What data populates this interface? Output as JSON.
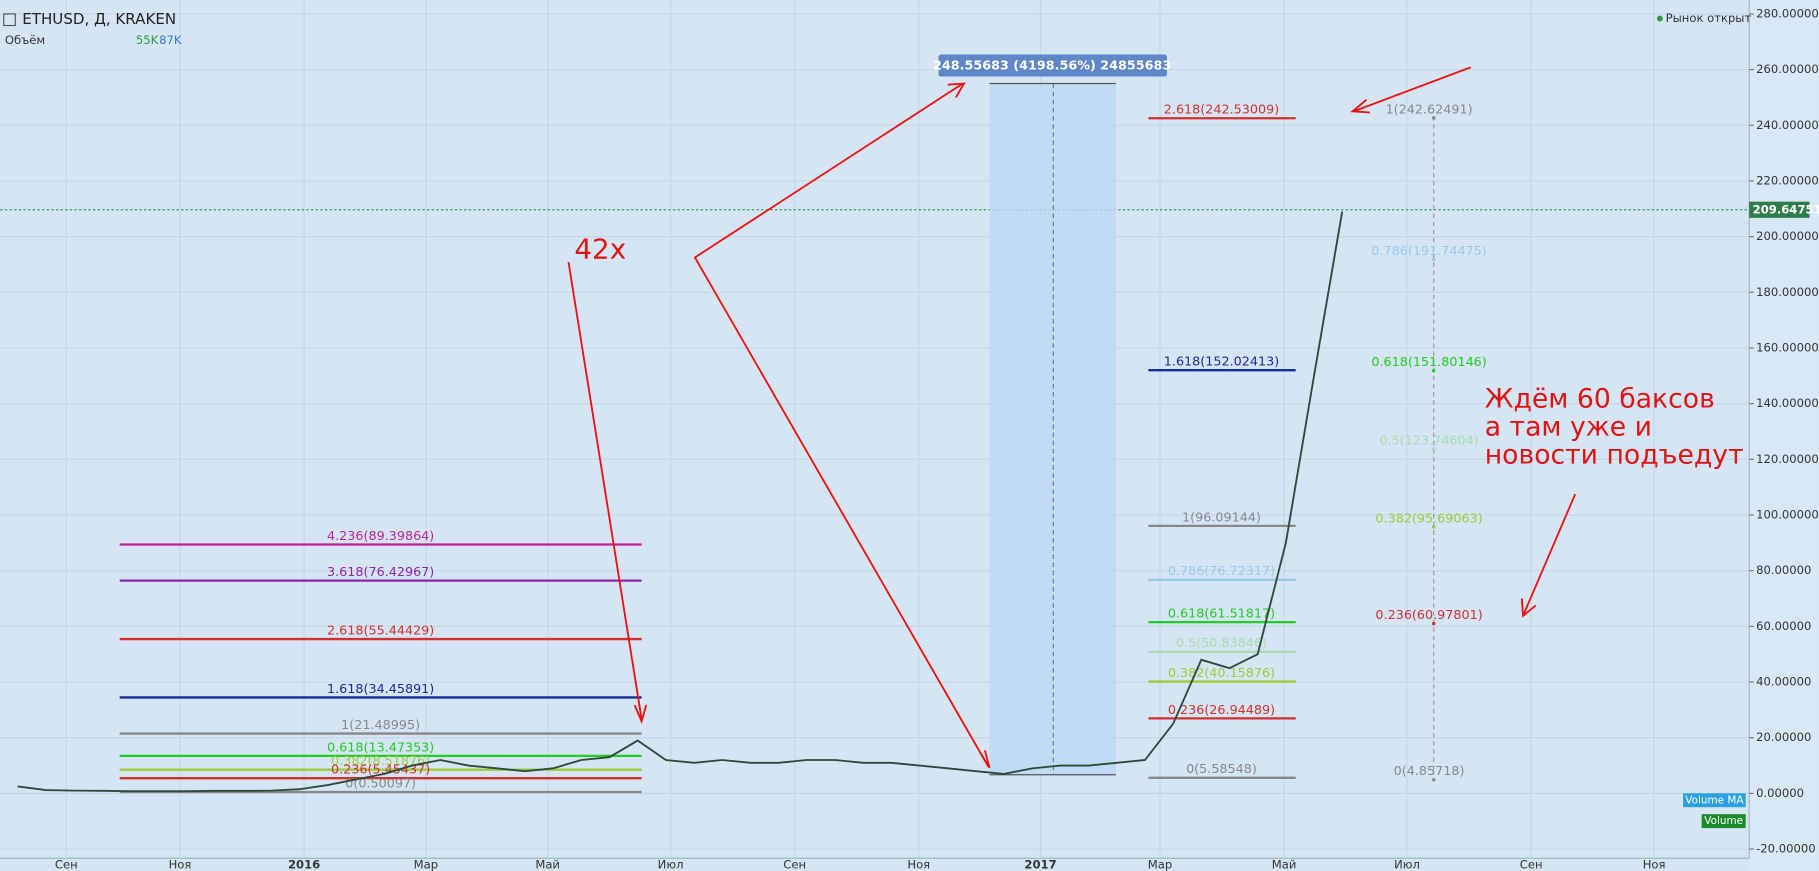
{
  "header": {
    "symbol": "ETHUSD, Д, KRAKEN",
    "indicator": "Объём",
    "volume_a": "55K",
    "volume_b": "87K",
    "market_status": "Рынок открыт"
  },
  "price_axis": {
    "ylim": [
      -23.3,
      285
    ],
    "yticks": [
      {
        "value": 280,
        "label": "280.00000"
      },
      {
        "value": 260,
        "label": "260.00000"
      },
      {
        "value": 240,
        "label": "240.00000"
      },
      {
        "value": 220,
        "label": "220.00000"
      },
      {
        "value": 200,
        "label": "200.00000"
      },
      {
        "value": 180,
        "label": "180.00000"
      },
      {
        "value": 160,
        "label": "160.00000"
      },
      {
        "value": 140,
        "label": "140.00000"
      },
      {
        "value": 120,
        "label": "120.00000"
      },
      {
        "value": 100,
        "label": "100.00000"
      },
      {
        "value": 80,
        "label": "80.00000"
      },
      {
        "value": 60,
        "label": "60.00000"
      },
      {
        "value": 40,
        "label": "40.00000"
      },
      {
        "value": 20,
        "label": "20.00000"
      },
      {
        "value": 0,
        "label": "0.00000"
      },
      {
        "value": -20,
        "label": "-20.00000"
      }
    ],
    "last_price": {
      "value": 209.64751,
      "label": "209.64751"
    }
  },
  "time_axis": {
    "labels": [
      "Сен",
      "Ноя",
      "2016",
      "Мар",
      "Май",
      "Июл",
      "Сен",
      "Ноя",
      "2017",
      "Мар",
      "Май",
      "Июл",
      "Сен",
      "Ноя"
    ]
  },
  "price_trace": {
    "values": [
      2.5,
      1.2,
      1.0,
      0.9,
      0.8,
      0.8,
      0.8,
      0.9,
      0.9,
      1.0,
      1.5,
      3,
      5,
      7,
      10,
      12,
      10,
      9,
      8,
      9,
      12,
      13,
      19,
      12,
      11,
      12,
      11,
      11,
      12,
      12,
      11,
      11,
      10,
      9,
      8,
      7,
      9,
      10,
      10,
      11,
      12,
      25,
      48,
      45,
      50,
      90,
      150,
      209
    ]
  },
  "fib_sets": [
    {
      "levels": [
        {
          "value": 89.39864,
          "label": "4.236(89.39864)",
          "color": "#c0229a"
        },
        {
          "value": 76.42967,
          "label": "3.618(76.42967)",
          "color": "#8e24aa"
        },
        {
          "value": 55.44429,
          "label": "2.618(55.44429)",
          "color": "#d32f2f"
        },
        {
          "value": 34.45891,
          "label": "1.618(34.45891)",
          "color": "#1a2a9a"
        },
        {
          "value": 21.48995,
          "label": "1(21.48995)",
          "color": "#888888"
        },
        {
          "value": 13.47353,
          "label": "0.618(13.47353)",
          "color": "#22cc22"
        },
        {
          "value": 8.51876,
          "label": "0.382(8.51876)",
          "color": "#9ccc3a"
        },
        {
          "value": 5.45437,
          "label": "0.236(5.45437)",
          "color": "#d32f2f"
        },
        {
          "value": 0.50097,
          "label": "0(0.50097)",
          "color": "#888888"
        }
      ]
    },
    {
      "levels": [
        {
          "value": 242.53009,
          "label": "2.618(242.53009)",
          "color": "#d32f2f"
        },
        {
          "value": 152.02413,
          "label": "1.618(152.02413)",
          "color": "#1a2a9a"
        },
        {
          "value": 96.09144,
          "label": "1(96.09144)",
          "color": "#888888"
        },
        {
          "value": 76.72317,
          "label": "0.786(76.72317)",
          "color": "#9cc8e8"
        },
        {
          "value": 61.51817,
          "label": "0.618(61.51817)",
          "color": "#22cc22"
        },
        {
          "value": 50.83846,
          "label": "0.5(50.83846)",
          "color": "#a8dcb0"
        },
        {
          "value": 40.15876,
          "label": "0.382(40.15876)",
          "color": "#9ccc3a"
        },
        {
          "value": 26.94489,
          "label": "0.236(26.94489)",
          "color": "#d32f2f"
        },
        {
          "value": 5.58548,
          "label": "0(5.58548)",
          "color": "#888888"
        }
      ]
    },
    {
      "levels": [
        {
          "value": 242.62491,
          "label": "1(242.62491)",
          "color": "#888888"
        },
        {
          "value": 191.74475,
          "label": "0.786(191.74475)",
          "color": "#9cc8e8"
        },
        {
          "value": 151.80146,
          "label": "0.618(151.80146)",
          "color": "#22cc22"
        },
        {
          "value": 123.74604,
          "label": "0.5(123.74604)",
          "color": "#a8dcb0"
        },
        {
          "value": 95.69063,
          "label": "0.382(95.69063)",
          "color": "#9ccc3a"
        },
        {
          "value": 60.97801,
          "label": "0.236(60.97801)",
          "color": "#d32f2f"
        },
        {
          "value": 4.85718,
          "label": "0(4.85718)",
          "color": "#888888"
        }
      ]
    }
  ],
  "measure": {
    "label": "248.55683 (4198.56%) 24855683"
  },
  "annotations": {
    "multiplier": "42x",
    "note": [
      "Ждём 60 баксов",
      "а там уже и",
      "новости подъедут"
    ]
  },
  "badges": {
    "volume_ma": "Volume MA",
    "volume": "Volume"
  }
}
